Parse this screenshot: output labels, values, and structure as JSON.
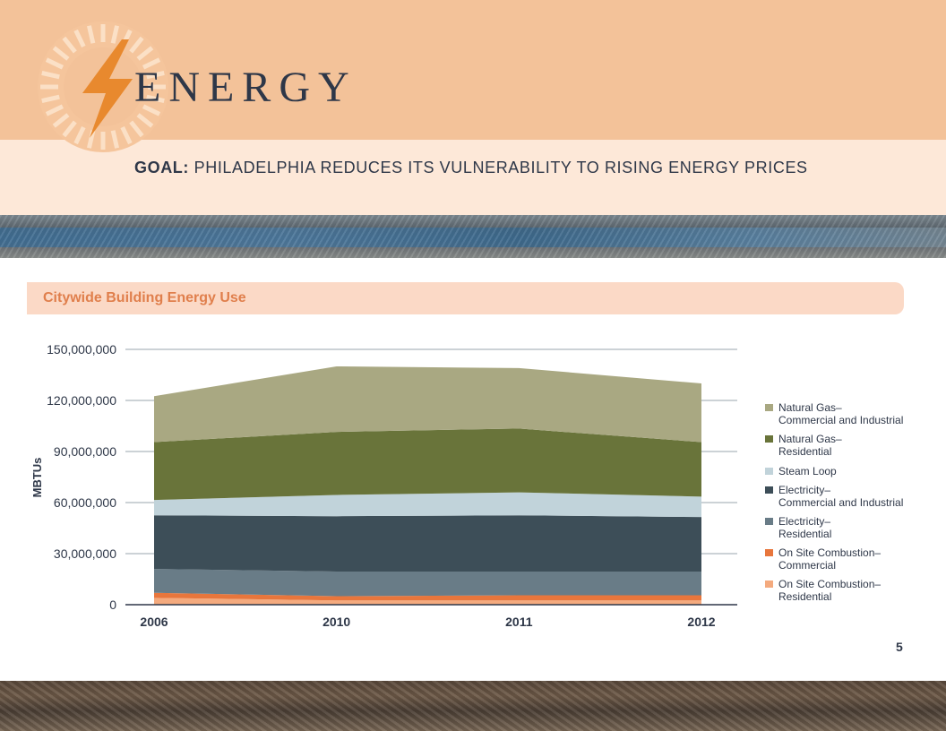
{
  "header": {
    "title": "ENERGY",
    "goal_prefix": "GOAL:",
    "goal_text": "PHILADELPHIA REDUCES ITS VULNERABILITY TO RISING ENERGY PRICES"
  },
  "page_number": "5",
  "colors": {
    "header_band": "#f3c299",
    "goal_band": "#fde8d8",
    "accent": "#e07f4c",
    "text": "#2e3748"
  },
  "chart_data": {
    "type": "area",
    "stacked": true,
    "title": "Citywide Building Energy Use",
    "ylabel": "MBTUs",
    "xlabel": "",
    "categories": [
      "2006",
      "2010",
      "2011",
      "2012"
    ],
    "ylim": [
      0,
      150000000
    ],
    "yticks": [
      0,
      30000000,
      60000000,
      90000000,
      120000000,
      150000000
    ],
    "ytick_labels": [
      "0",
      "30,000,000",
      "60,000,000",
      "90,000,000",
      "120,000,000",
      "150,000,000"
    ],
    "grid": true,
    "legend_position": "right",
    "series": [
      {
        "name": "On Site Combustion– Residential",
        "legend": [
          "On Site Combustion–",
          "Residential"
        ],
        "color": "#f4aa7e",
        "values": [
          4000000,
          2500000,
          2500000,
          2500000
        ]
      },
      {
        "name": "On Site Combustion– Commercial",
        "legend": [
          "On Site Combustion–",
          "Commercial"
        ],
        "color": "#e8763c",
        "values": [
          3000000,
          2500000,
          3000000,
          3000000
        ]
      },
      {
        "name": "Electricity– Residential",
        "legend": [
          "Electricity–",
          "Residential"
        ],
        "color": "#697c87",
        "values": [
          14000000,
          14500000,
          14000000,
          14000000
        ]
      },
      {
        "name": "Electricity– Commercial and Industrial",
        "legend": [
          "Electricity–",
          "Commercial and Industrial"
        ],
        "color": "#3d4e58",
        "values": [
          31500000,
          32500000,
          33000000,
          32000000
        ]
      },
      {
        "name": "Steam Loop",
        "legend": [
          "Steam Loop"
        ],
        "color": "#c1d3da",
        "values": [
          9000000,
          12500000,
          13500000,
          12000000
        ]
      },
      {
        "name": "Natural Gas– Residential",
        "legend": [
          "Natural Gas–",
          "Residential"
        ],
        "color": "#69743a",
        "values": [
          34000000,
          37000000,
          37500000,
          32000000
        ]
      },
      {
        "name": "Natural Gas– Commercial and Industrial",
        "legend": [
          "Natural Gas–",
          "Commercial and Industrial"
        ],
        "color": "#a9a882",
        "values": [
          27000000,
          38500000,
          35500000,
          34500000
        ]
      }
    ]
  }
}
